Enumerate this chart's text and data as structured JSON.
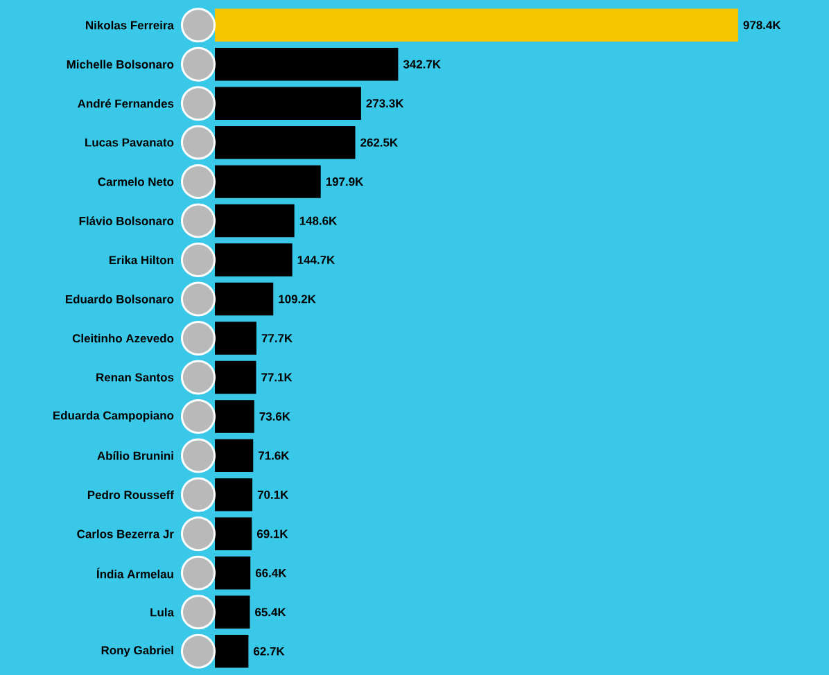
{
  "chart_data": {
    "type": "bar",
    "orientation": "horizontal",
    "tick_labels": "y",
    "categories": [
      "Nikolas Ferreira",
      "Michelle Bolsonaro",
      "André Fernandes",
      "Lucas Pavanato",
      "Carmelo Neto",
      "Flávio Bolsonaro",
      "Erika Hilton",
      "Eduardo Bolsonaro",
      "Cleitinho Azevedo",
      "Renan Santos",
      "Eduarda Campopiano",
      "Abílio Brunini",
      "Pedro Rousseff",
      "Carlos Bezerra Jr",
      "Índia Armelau",
      "Lula",
      "Rony Gabriel"
    ],
    "values": [
      978.4,
      342.7,
      273.3,
      262.5,
      197.9,
      148.6,
      144.7,
      109.2,
      77.7,
      77.1,
      73.6,
      71.6,
      70.1,
      69.1,
      66.4,
      65.4,
      62.7
    ],
    "value_labels": [
      "978.4K",
      "342.7K",
      "273.3K",
      "262.5K",
      "197.9K",
      "148.6K",
      "144.7K",
      "109.2K",
      "77.7K",
      "77.1K",
      "73.6K",
      "71.6K",
      "70.1K",
      "69.1K",
      "66.4K",
      "65.4K",
      "62.7K"
    ],
    "colors": [
      "#f7c600",
      "#000000",
      "#000000",
      "#000000",
      "#000000",
      "#000000",
      "#000000",
      "#000000",
      "#000000",
      "#000000",
      "#000000",
      "#000000",
      "#000000",
      "#000000",
      "#000000",
      "#000000",
      "#000000"
    ]
  }
}
